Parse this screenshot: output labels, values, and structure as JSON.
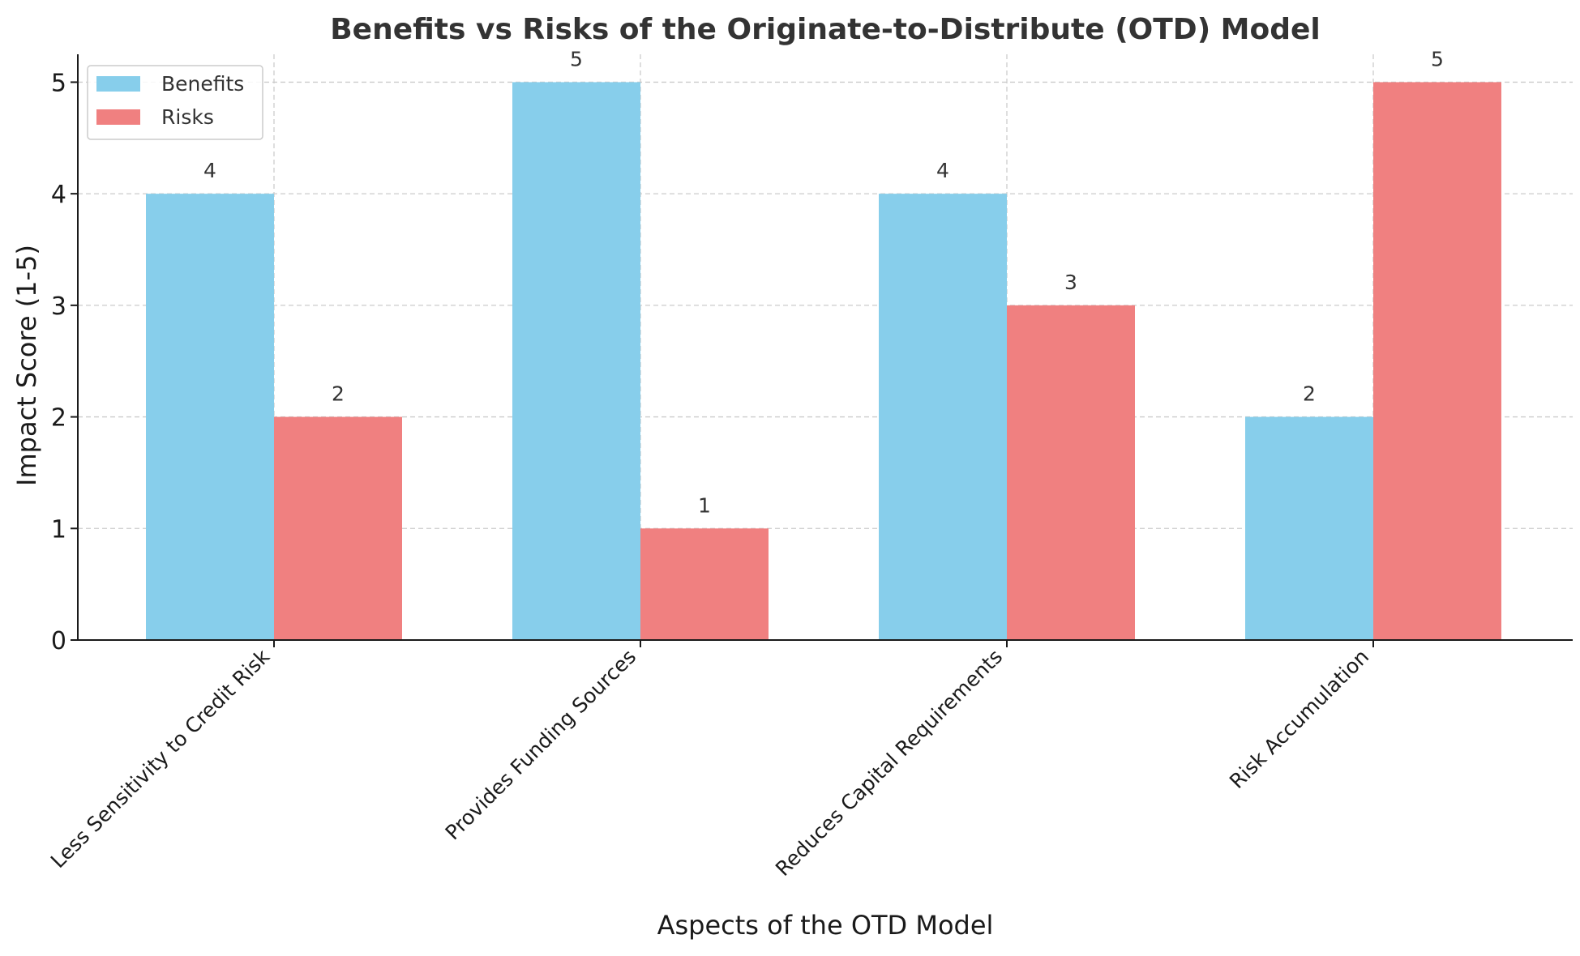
{
  "chart_data": {
    "type": "bar",
    "title": "Benefits vs Risks of the Originate-to-Distribute (OTD) Model",
    "xlabel": "Aspects of the OTD Model",
    "ylabel": "Impact Score (1-5)",
    "categories": [
      "Less Sensitivity to Credit Risk",
      "Provides Funding Sources",
      "Reduces Capital Requirements",
      "Risk Accumulation"
    ],
    "series": [
      {
        "name": "Benefits",
        "values": [
          4,
          5,
          4,
          2
        ],
        "color": "#87CEEB"
      },
      {
        "name": "Risks",
        "values": [
          2,
          1,
          3,
          5
        ],
        "color": "#F08080"
      }
    ],
    "ylim": [
      0,
      5.25
    ],
    "yticks": [
      "0",
      "1",
      "2",
      "3",
      "4",
      "5"
    ],
    "grid": true,
    "legend_position": "upper-left"
  }
}
